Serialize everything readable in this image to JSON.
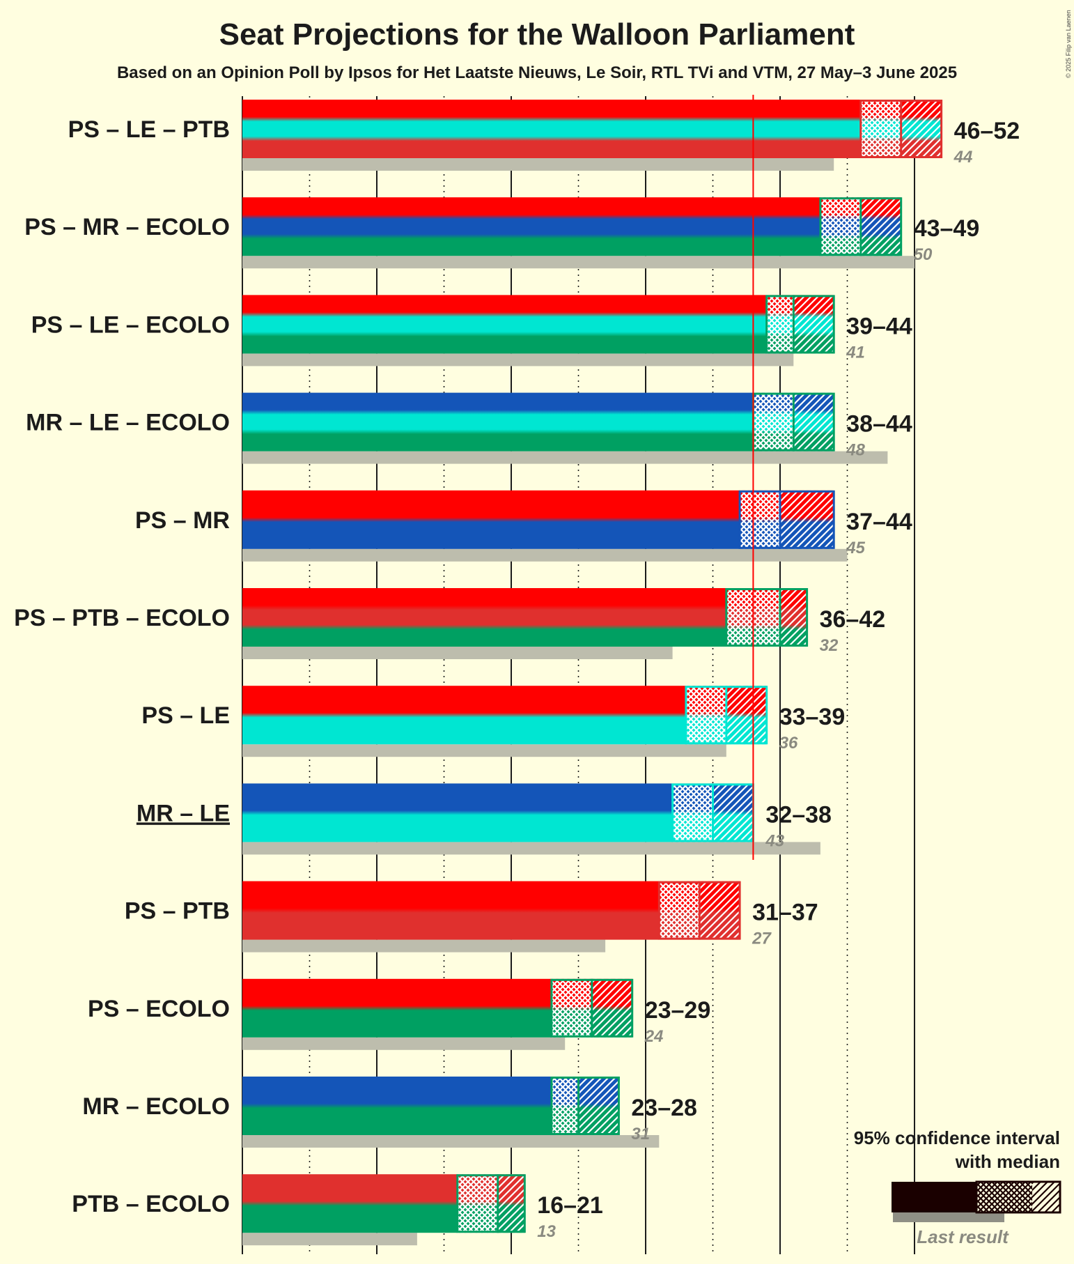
{
  "title": "Seat Projections for the Walloon Parliament",
  "subtitle": "Based on an Opinion Poll by Ipsos for Het Laatste Nieuws, Le Soir, RTL TVi and VTM, 27 May–3 June 2025",
  "copyright": "© 2025 Filip van Laenen",
  "colors": {
    "background": "#FFFEE0",
    "PS": "#FF0000",
    "LE": "#00E6D2",
    "PTB": "#E0302E",
    "MR": "#1455B8",
    "ECOLO": "#00A062",
    "last_result": "#BDBDAD",
    "majority_line": "#FF0000"
  },
  "chart_data": {
    "type": "bar",
    "orientation": "horizontal",
    "xlim": [
      0,
      75
    ],
    "majority": 38,
    "x_gridlines": [
      5,
      10,
      15,
      20,
      25,
      30,
      35,
      40,
      45,
      50
    ],
    "coalitions": [
      {
        "label": "PS – LE – PTB",
        "parties": [
          "PS",
          "LE",
          "PTB"
        ],
        "low": 46,
        "median": 49,
        "high": 52,
        "range_label": "46–52",
        "last": 44,
        "last_label": "44",
        "underline": false
      },
      {
        "label": "PS – MR – ECOLO",
        "parties": [
          "PS",
          "MR",
          "ECOLO"
        ],
        "low": 43,
        "median": 46,
        "high": 49,
        "range_label": "43–49",
        "last": 50,
        "last_label": "50",
        "underline": false
      },
      {
        "label": "PS – LE – ECOLO",
        "parties": [
          "PS",
          "LE",
          "ECOLO"
        ],
        "low": 39,
        "median": 41,
        "high": 44,
        "range_label": "39–44",
        "last": 41,
        "last_label": "41",
        "underline": false
      },
      {
        "label": "MR – LE – ECOLO",
        "parties": [
          "MR",
          "LE",
          "ECOLO"
        ],
        "low": 38,
        "median": 41,
        "high": 44,
        "range_label": "38–44",
        "last": 48,
        "last_label": "48",
        "underline": false
      },
      {
        "label": "PS – MR",
        "parties": [
          "PS",
          "MR"
        ],
        "low": 37,
        "median": 40,
        "high": 44,
        "range_label": "37–44",
        "last": 45,
        "last_label": "45",
        "underline": false
      },
      {
        "label": "PS – PTB – ECOLO",
        "parties": [
          "PS",
          "PTB",
          "ECOLO"
        ],
        "low": 36,
        "median": 40,
        "high": 42,
        "range_label": "36–42",
        "last": 32,
        "last_label": "32",
        "underline": false
      },
      {
        "label": "PS – LE",
        "parties": [
          "PS",
          "LE"
        ],
        "low": 33,
        "median": 36,
        "high": 39,
        "range_label": "33–39",
        "last": 36,
        "last_label": "36",
        "underline": false
      },
      {
        "label": "MR – LE",
        "parties": [
          "MR",
          "LE"
        ],
        "low": 32,
        "median": 35,
        "high": 38,
        "range_label": "32–38",
        "last": 43,
        "last_label": "43",
        "underline": true
      },
      {
        "label": "PS – PTB",
        "parties": [
          "PS",
          "PTB"
        ],
        "low": 31,
        "median": 34,
        "high": 37,
        "range_label": "31–37",
        "last": 27,
        "last_label": "27",
        "underline": false
      },
      {
        "label": "PS – ECOLO",
        "parties": [
          "PS",
          "ECOLO"
        ],
        "low": 23,
        "median": 26,
        "high": 29,
        "range_label": "23–29",
        "last": 24,
        "last_label": "24",
        "underline": false
      },
      {
        "label": "MR – ECOLO",
        "parties": [
          "MR",
          "ECOLO"
        ],
        "low": 23,
        "median": 25,
        "high": 28,
        "range_label": "23–28",
        "last": 31,
        "last_label": "31",
        "underline": false
      },
      {
        "label": "PTB – ECOLO",
        "parties": [
          "PTB",
          "ECOLO"
        ],
        "low": 16,
        "median": 19,
        "high": 21,
        "range_label": "16–21",
        "last": 13,
        "last_label": "13",
        "underline": false
      }
    ]
  },
  "legend": {
    "line1": "95% confidence interval",
    "line2": "with median",
    "last_result": "Last result"
  }
}
